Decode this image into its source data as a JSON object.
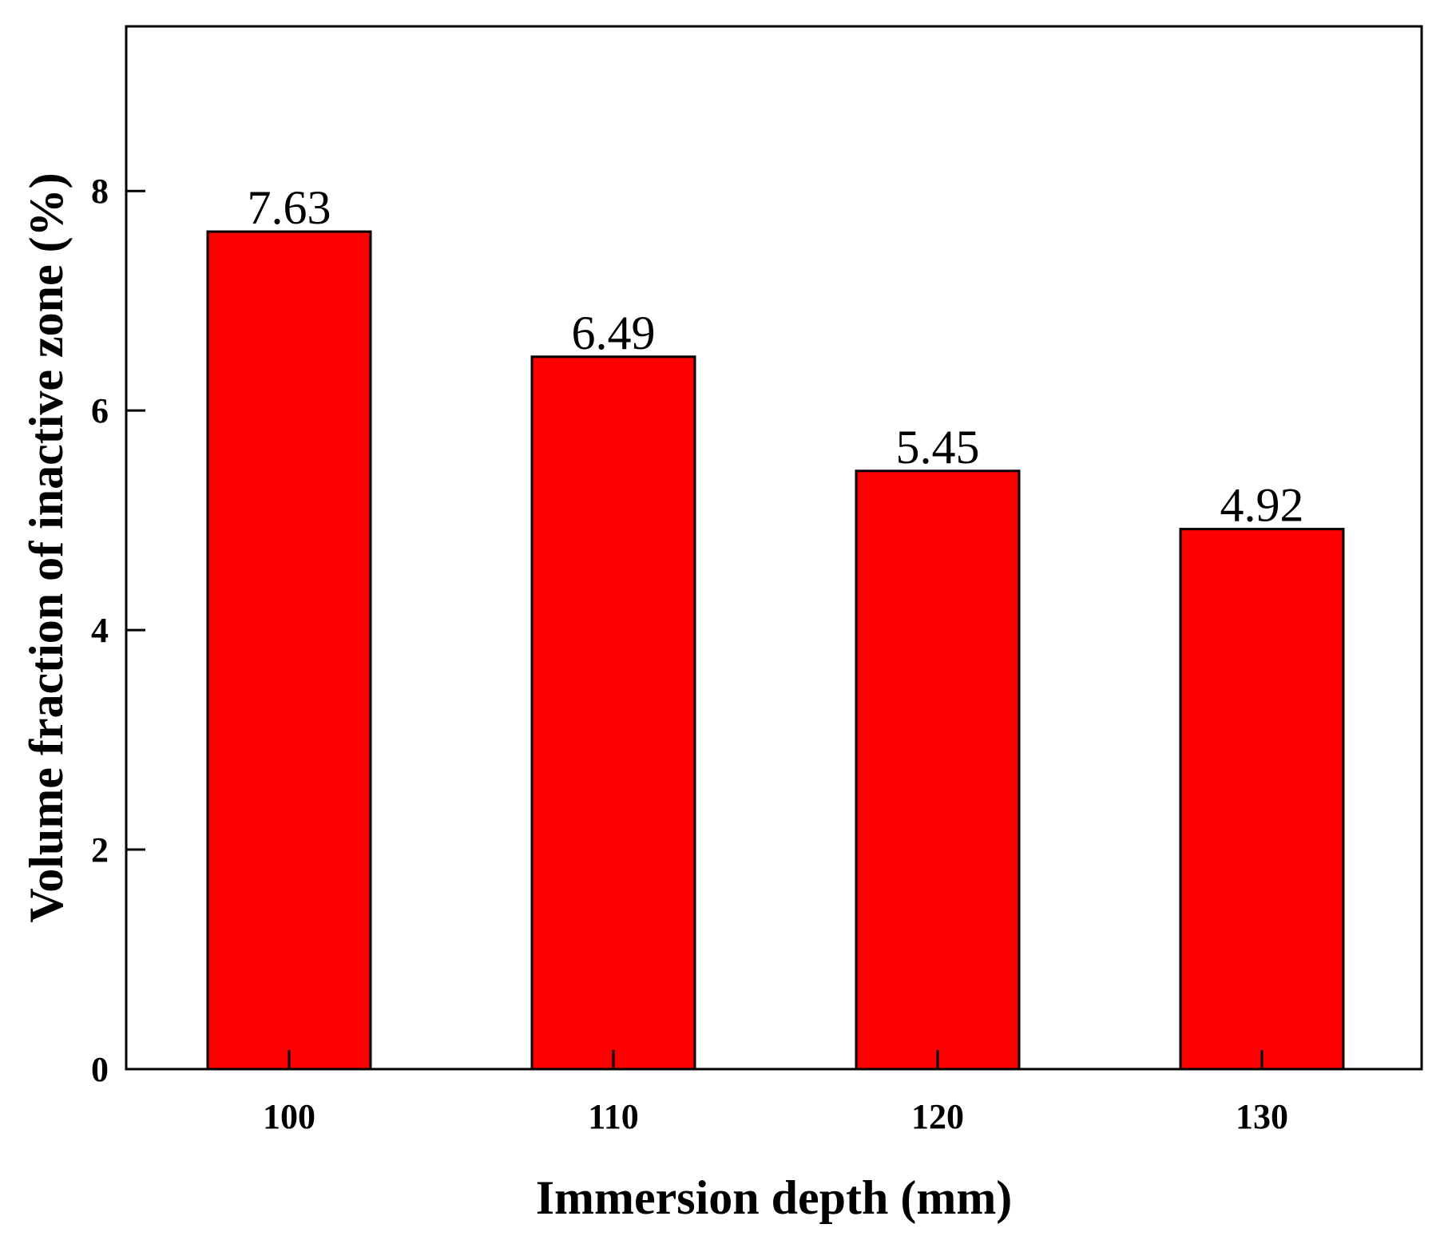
{
  "chart_data": {
    "type": "bar",
    "categories": [
      "100",
      "110",
      "120",
      "130"
    ],
    "values": [
      7.63,
      6.49,
      5.45,
      4.92
    ],
    "data_labels": [
      "7.63",
      "6.49",
      "5.45",
      "4.92"
    ],
    "title": "",
    "xlabel": "Immersion depth (mm)",
    "ylabel": "Volume fraction of inactive zone (%)",
    "ylim": [
      0,
      9.5
    ],
    "yticks": [
      "0",
      "2",
      "4",
      "6",
      "8"
    ],
    "grid": false,
    "legend": "none",
    "bar_color": "#FF0000",
    "edge_color": "#000000"
  }
}
